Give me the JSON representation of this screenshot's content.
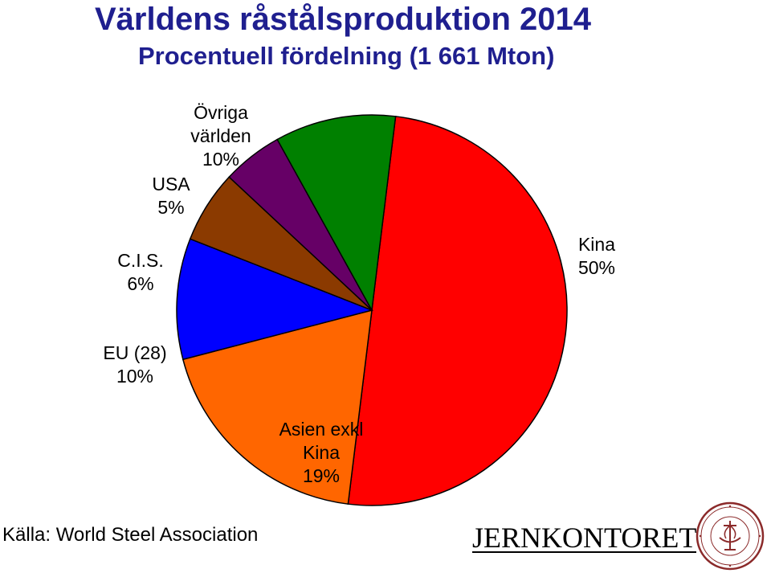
{
  "header": {
    "title": "Världens råstålsproduktion 2014",
    "subtitle": "Procentuell fördelning (1 661 Mton)"
  },
  "chart_data": {
    "type": "pie",
    "start_angle_deg_clockwise_from_top": 7,
    "slices": [
      {
        "label_lines": [
          "Kina",
          "50%"
        ],
        "value": 50,
        "color": "#ff0000"
      },
      {
        "label_lines": [
          "Asien exkl",
          "Kina",
          "19%"
        ],
        "value": 19,
        "color": "#ff6600"
      },
      {
        "label_lines": [
          "EU (28)",
          "10%"
        ],
        "value": 10,
        "color": "#0000ff"
      },
      {
        "label_lines": [
          "C.I.S.",
          "6%"
        ],
        "value": 6,
        "color": "#8b3a00"
      },
      {
        "label_lines": [
          "USA",
          "5%"
        ],
        "value": 5,
        "color": "#660066"
      },
      {
        "label_lines": [
          "Övriga",
          "världen",
          "10%"
        ],
        "value": 10,
        "color": "#008000"
      }
    ],
    "legend": "none"
  },
  "footer": {
    "source": "Källa: World Steel Association",
    "logo_text": "JERNKONTORET",
    "seal_text": "JERN CONTOIRETS SIGILL"
  }
}
